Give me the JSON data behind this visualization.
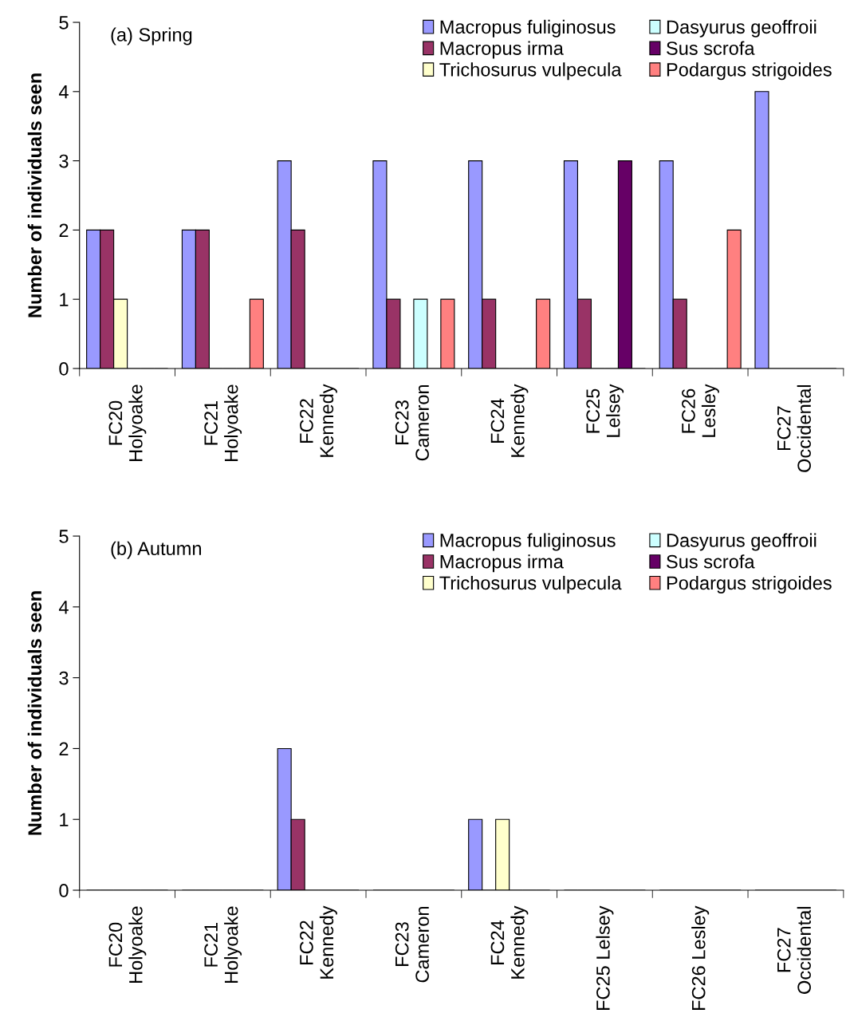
{
  "chart_data": [
    {
      "type": "bar",
      "title": "(a) Spring",
      "ylabel": "Number of individuals seen",
      "categories": [
        "FC20\nHolyoake",
        "FC21\nHolyoake",
        "FC22\nKennedy",
        "FC23\nCameron",
        "FC24\nKennedy",
        "FC25\nLelsey",
        "FC26\nLesley",
        "FC27\nOccidental"
      ],
      "ylim": [
        0,
        5
      ],
      "yticks": [
        0,
        1,
        2,
        3,
        4,
        5
      ],
      "grid": false,
      "legend": "top right",
      "series": [
        {
          "name": "Macropus fuliginosus",
          "color": "#9999ff",
          "values": [
            2,
            2,
            3,
            3,
            3,
            3,
            3,
            4
          ]
        },
        {
          "name": "Macropus irma",
          "color": "#993366",
          "values": [
            2,
            2,
            2,
            1,
            1,
            1,
            1,
            0
          ]
        },
        {
          "name": "Trichosurus vulpecula",
          "color": "#ffffcc",
          "values": [
            1,
            0,
            0,
            0,
            0,
            0,
            0,
            0
          ]
        },
        {
          "name": "Dasyurus geoffroii",
          "color": "#ccffff",
          "values": [
            0,
            0,
            0,
            1,
            0,
            0,
            0,
            0
          ]
        },
        {
          "name": "Sus scrofa",
          "color": "#660066",
          "values": [
            0,
            0,
            0,
            0,
            0,
            3,
            0,
            0
          ]
        },
        {
          "name": "Podargus strigoides",
          "color": "#ff8080",
          "values": [
            0,
            1,
            0,
            1,
            1,
            0,
            2,
            0
          ]
        }
      ]
    },
    {
      "type": "bar",
      "title": "(b) Autumn",
      "ylabel": "Number of individuals seen",
      "categories": [
        "FC20\nHolyoake",
        "FC21\nHolyoake",
        "FC22\nKennedy",
        "FC23\nCameron",
        "FC24\nKennedy",
        "FC25 Lelsey",
        "FC26 Lesley",
        "FC27\nOccidental"
      ],
      "ylim": [
        0,
        5
      ],
      "yticks": [
        0,
        1,
        2,
        3,
        4,
        5
      ],
      "grid": false,
      "legend": "top right",
      "series": [
        {
          "name": "Macropus fuliginosus",
          "color": "#9999ff",
          "values": [
            0,
            0,
            2,
            0,
            1,
            0,
            0,
            0
          ]
        },
        {
          "name": "Macropus irma",
          "color": "#993366",
          "values": [
            0,
            0,
            1,
            0,
            0,
            0,
            0,
            0
          ]
        },
        {
          "name": "Trichosurus vulpecula",
          "color": "#ffffcc",
          "values": [
            0,
            0,
            0,
            0,
            1,
            0,
            0,
            0
          ]
        },
        {
          "name": "Dasyurus geoffroii",
          "color": "#ccffff",
          "values": [
            0,
            0,
            0,
            0,
            0,
            0,
            0,
            0
          ]
        },
        {
          "name": "Sus scrofa",
          "color": "#660066",
          "values": [
            0,
            0,
            0,
            0,
            0,
            0,
            0,
            0
          ]
        },
        {
          "name": "Podargus strigoides",
          "color": "#ff8080",
          "values": [
            0,
            0,
            0,
            0,
            0,
            0,
            0,
            0
          ]
        }
      ]
    }
  ]
}
